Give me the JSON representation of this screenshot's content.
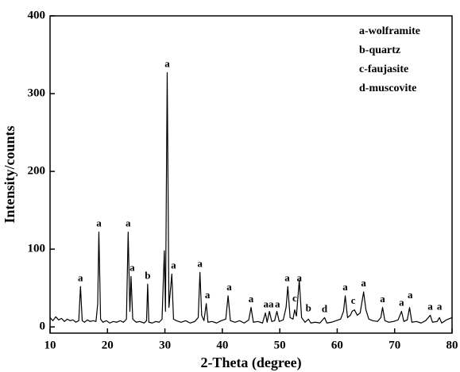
{
  "chart_data": {
    "type": "line",
    "xlabel": "2-Theta (degree)",
    "ylabel": "Intensity/counts",
    "legend_text": [
      "a-wolframite",
      "b-quartz",
      "c-faujasite",
      "d-muscovite"
    ],
    "color": "#000000",
    "xlim": [
      10,
      80
    ],
    "xticks": [
      10,
      20,
      30,
      40,
      50,
      60,
      70,
      80
    ],
    "ylim": [
      -8,
      400
    ],
    "yticks": [
      0,
      100,
      200,
      300,
      400
    ],
    "x": [
      10,
      10.5,
      11,
      11.5,
      12,
      12.5,
      13,
      13.5,
      14,
      14.5,
      15,
      15.3,
      15.6,
      16,
      16.5,
      17,
      17.5,
      18,
      18.3,
      18.5,
      18.8,
      19.2,
      19.8,
      20.4,
      21,
      21.6,
      22.2,
      22.8,
      23.3,
      23.6,
      23.9,
      24.1,
      24.4,
      25,
      25.6,
      26.4,
      26.8,
      27.0,
      27.2,
      27.8,
      28.4,
      29.0,
      29.5,
      29.9,
      30.1,
      30.4,
      30.7,
      31.2,
      31.5,
      32,
      32.8,
      33.6,
      34.4,
      35.2,
      35.8,
      36.1,
      36.4,
      36.8,
      37.2,
      37.5,
      38.2,
      39,
      39.8,
      40.6,
      41.0,
      41.4,
      42.2,
      43,
      43.8,
      44.6,
      45.0,
      45.4,
      46.2,
      47,
      47.5,
      47.8,
      48.2,
      48.6,
      49.1,
      49.5,
      49.9,
      50.6,
      51.1,
      51.4,
      51.8,
      52.3,
      52.6,
      52.9,
      53.4,
      53.8,
      54.4,
      55.0,
      55.4,
      56.2,
      57.0,
      57.8,
      58.2,
      59,
      59.8,
      60.6,
      61.1,
      61.4,
      61.8,
      62.3,
      62.6,
      63.0,
      63.5,
      64.0,
      64.6,
      65.0,
      65.5,
      66.2,
      67.0,
      67.6,
      67.9,
      68.3,
      69.0,
      69.8,
      70.6,
      71.2,
      71.6,
      72.2,
      72.6,
      73.0,
      73.8,
      74.6,
      75.4,
      76.2,
      76.6,
      77.4,
      77.8,
      78.2,
      79,
      80
    ],
    "values": [
      12,
      8,
      13,
      9,
      11,
      7,
      10,
      8,
      9,
      6,
      8,
      52,
      8,
      6,
      9,
      7,
      8,
      7,
      30,
      122,
      10,
      6,
      8,
      5,
      7,
      6,
      8,
      6,
      10,
      122,
      20,
      65,
      10,
      6,
      7,
      5,
      8,
      55,
      6,
      5,
      7,
      6,
      10,
      98,
      20,
      327,
      25,
      68,
      10,
      8,
      6,
      8,
      5,
      7,
      12,
      70,
      15,
      8,
      30,
      6,
      7,
      5,
      8,
      10,
      40,
      8,
      6,
      8,
      5,
      9,
      25,
      6,
      7,
      5,
      18,
      6,
      20,
      7,
      8,
      20,
      7,
      9,
      25,
      52,
      12,
      10,
      22,
      14,
      60,
      12,
      6,
      10,
      5,
      6,
      5,
      12,
      5,
      6,
      8,
      10,
      20,
      40,
      12,
      15,
      20,
      22,
      15,
      18,
      45,
      22,
      10,
      8,
      7,
      12,
      25,
      8,
      6,
      7,
      9,
      20,
      7,
      9,
      25,
      6,
      7,
      5,
      8,
      15,
      6,
      7,
      12,
      5,
      9,
      12
    ],
    "annotations": [
      {
        "text": "a",
        "x": 15.3,
        "y": 62
      },
      {
        "text": "a",
        "x": 18.5,
        "y": 132
      },
      {
        "text": "a",
        "x": 23.6,
        "y": 132
      },
      {
        "text": "a",
        "x": 24.3,
        "y": 75
      },
      {
        "text": "b",
        "x": 27.0,
        "y": 65
      },
      {
        "text": "a",
        "x": 30.4,
        "y": 337
      },
      {
        "text": "a",
        "x": 31.5,
        "y": 78
      },
      {
        "text": "a",
        "x": 36.1,
        "y": 80
      },
      {
        "text": "a",
        "x": 37.4,
        "y": 40
      },
      {
        "text": "a",
        "x": 41.2,
        "y": 50
      },
      {
        "text": "a",
        "x": 45.0,
        "y": 35
      },
      {
        "text": "a",
        "x": 47.6,
        "y": 28
      },
      {
        "text": "a",
        "x": 48.5,
        "y": 28
      },
      {
        "text": "a",
        "x": 49.6,
        "y": 28
      },
      {
        "text": "a",
        "x": 51.3,
        "y": 62
      },
      {
        "text": "c",
        "x": 52.6,
        "y": 36
      },
      {
        "text": "a",
        "x": 53.4,
        "y": 62
      },
      {
        "text": "b",
        "x": 55.0,
        "y": 23
      },
      {
        "text": "d",
        "x": 57.8,
        "y": 22
      },
      {
        "text": "a",
        "x": 61.4,
        "y": 50
      },
      {
        "text": "c",
        "x": 62.8,
        "y": 33
      },
      {
        "text": "a",
        "x": 64.6,
        "y": 55
      },
      {
        "text": "a",
        "x": 67.9,
        "y": 35
      },
      {
        "text": "a",
        "x": 71.2,
        "y": 30
      },
      {
        "text": "a",
        "x": 72.7,
        "y": 40
      },
      {
        "text": "a",
        "x": 76.2,
        "y": 25
      },
      {
        "text": "a",
        "x": 77.8,
        "y": 25
      }
    ]
  }
}
